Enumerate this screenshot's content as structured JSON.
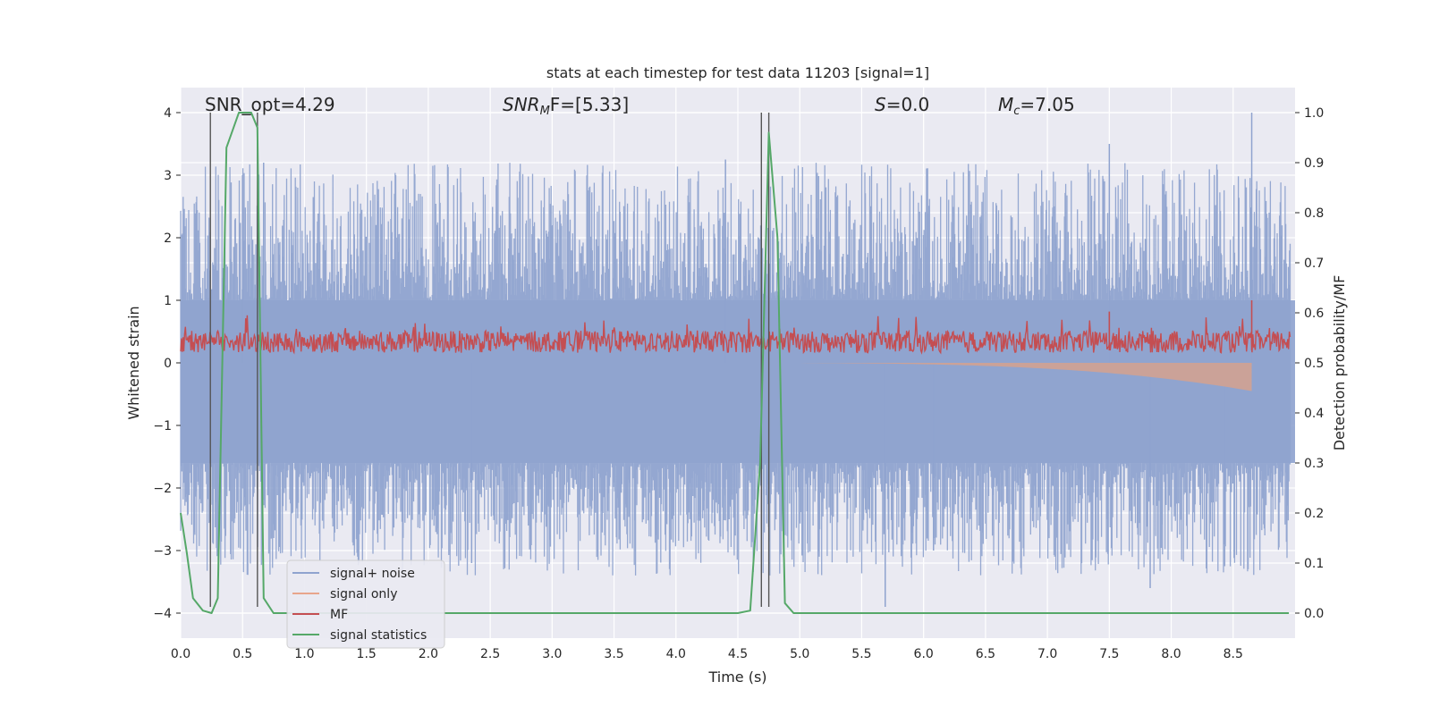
{
  "chart_data": {
    "type": "line",
    "title": "stats at each timestep for test data 11203 [signal=1]",
    "xlabel": "Time (s)",
    "ylabel_left": "Whitened strain",
    "ylabel_right": "Detection probability/MF",
    "xlim": [
      0.0,
      9.0
    ],
    "ylim_left": [
      -4.4,
      4.4
    ],
    "ylim_right": [
      -0.05,
      1.05
    ],
    "xticks": [
      "0.0",
      "0.5",
      "1.0",
      "1.5",
      "2.0",
      "2.5",
      "3.0",
      "3.5",
      "4.0",
      "4.5",
      "5.0",
      "5.5",
      "6.0",
      "6.5",
      "7.0",
      "7.5",
      "8.0",
      "8.5"
    ],
    "yticks_left": [
      "−4",
      "−3",
      "−2",
      "−1",
      "0",
      "1",
      "2",
      "3",
      "4"
    ],
    "yticks_right": [
      "0.0",
      "0.1",
      "0.2",
      "0.3",
      "0.4",
      "0.5",
      "0.6",
      "0.7",
      "0.8",
      "0.9",
      "1.0"
    ],
    "annotations": {
      "snr_opt": "SNR_opt=4.29",
      "snr_mf_label": "SNR",
      "snr_mf_sub": "M",
      "snr_mf_rest": "F=[5.33]",
      "s_label": "S",
      "s_rest": "=0.0",
      "mc_label": "M",
      "mc_sub": "c",
      "mc_rest": "=7.05"
    },
    "vertical_lines_s": [
      0.24,
      0.62,
      4.69,
      4.75
    ],
    "noise_envelope": {
      "upper": 2.4,
      "lower": -2.4,
      "baseline_band": [
        -1.6,
        1.0
      ]
    },
    "signal_only": {
      "start_s": 5.0,
      "end_s": 8.65,
      "end_value": -0.4
    },
    "mf_band": {
      "center": 0.25,
      "amplitude": 0.35,
      "peaks": [
        {
          "x": 7.5,
          "y": 0.82
        },
        {
          "x": 8.65,
          "y": 1.0
        }
      ]
    },
    "signal_statistics": {
      "x": [
        0.0,
        0.05,
        0.1,
        0.18,
        0.25,
        0.3,
        0.37,
        0.47,
        0.57,
        0.62,
        0.67,
        0.75,
        1.5,
        2.5,
        3.5,
        4.5,
        4.6,
        4.68,
        4.75,
        4.82,
        4.88,
        4.95,
        5.5,
        6.5,
        7.5,
        8.5,
        8.95
      ],
      "y": [
        0.2,
        0.12,
        0.03,
        0.005,
        0.0,
        0.03,
        0.93,
        1.0,
        1.0,
        0.97,
        0.03,
        0.0,
        0.0,
        0.0,
        0.0,
        0.0,
        0.005,
        0.3,
        0.96,
        0.75,
        0.02,
        0.0,
        0.0,
        0.0,
        0.0,
        0.0,
        0.0
      ]
    },
    "legend": {
      "location": "lower-left",
      "entries": [
        {
          "label": "signal+ noise",
          "color": "#8fa3cf"
        },
        {
          "label": "signal only",
          "color": "#e8a58b"
        },
        {
          "label": "MF",
          "color": "#c44e52"
        },
        {
          "label": "signal statistics",
          "color": "#55a868"
        }
      ]
    }
  },
  "colors": {
    "plot_bg": "#eaeaf2",
    "grid": "#ffffff",
    "noise": "#8fa3cf",
    "signal_only": "#d6a28e",
    "mf": "#c44e52",
    "stats": "#55a868",
    "vline": "#555555"
  }
}
